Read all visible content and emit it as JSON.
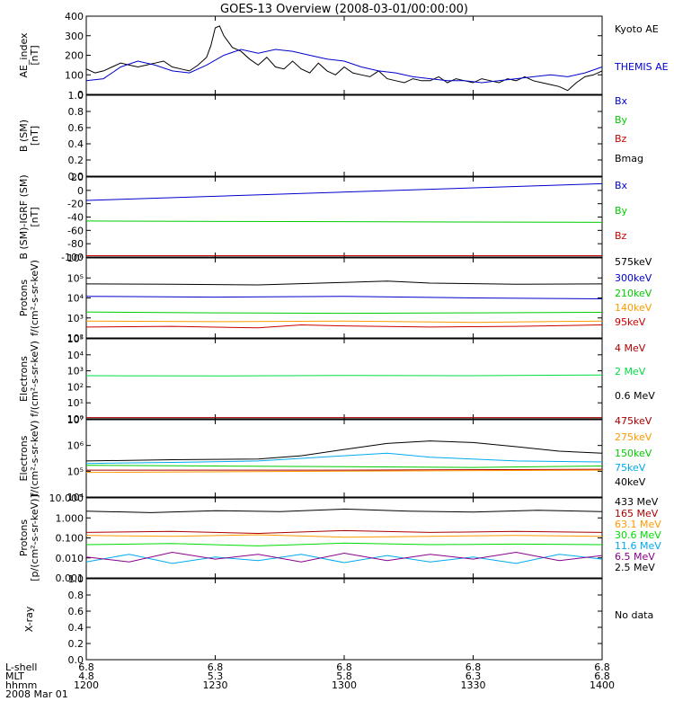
{
  "title": "GOES-13 Overview (2008-03-01/00:00:00)",
  "colors": {
    "black": "#000000",
    "blue": "#0000cc",
    "green": "#00cc00",
    "red": "#cc0000",
    "dark_red": "#aa0000",
    "orange": "#ff9900",
    "cyan": "#00aaee",
    "purple": "#880088",
    "bright_green": "#00dd44",
    "gold": "#ddcc00"
  },
  "x_axis": {
    "rows": [
      {
        "label": "L-shell",
        "values": [
          "6.8",
          "6.8",
          "6.8",
          "6.8",
          "6.8"
        ]
      },
      {
        "label": "MLT",
        "values": [
          "4.8",
          "5.3",
          "5.8",
          "6.3",
          "6.8"
        ]
      },
      {
        "label": "hhmm",
        "values": [
          "1200",
          "1230",
          "1300",
          "1330",
          "1400"
        ]
      }
    ],
    "date_label": "2008 Mar 01",
    "range": [
      "12:00",
      "14:00"
    ]
  },
  "chart_data": [
    {
      "type": "line",
      "ylabel": "AE_index\n[nT]",
      "ylim": [
        0,
        400
      ],
      "yticks": [
        "0",
        "100",
        "200",
        "300",
        "400"
      ],
      "series": [
        {
          "name": "Kyoto AE",
          "color": "#000000",
          "x": [
            0,
            2,
            4,
            6,
            8,
            10,
            12,
            14,
            16,
            18,
            20,
            22,
            24,
            26,
            28,
            29,
            30,
            31,
            32,
            34,
            36,
            38,
            40,
            42,
            44,
            46,
            48,
            50,
            52,
            54,
            56,
            58,
            60,
            62,
            64,
            66,
            68,
            70,
            72,
            74,
            76,
            78,
            80,
            82,
            84,
            86,
            88,
            90,
            92,
            94,
            96,
            98,
            100,
            102,
            104,
            106,
            108,
            110,
            112,
            114,
            116,
            118,
            120
          ],
          "y": [
            130,
            110,
            120,
            140,
            160,
            150,
            140,
            150,
            160,
            170,
            140,
            130,
            120,
            150,
            190,
            250,
            340,
            350,
            300,
            240,
            220,
            180,
            150,
            190,
            140,
            130,
            170,
            130,
            110,
            160,
            120,
            100,
            140,
            110,
            100,
            90,
            120,
            80,
            70,
            60,
            80,
            70,
            70,
            90,
            60,
            80,
            70,
            60,
            80,
            70,
            60,
            80,
            70,
            90,
            70,
            60,
            50,
            40,
            20,
            60,
            90,
            100,
            120
          ]
        },
        {
          "name": "THEMIS AE",
          "color": "#0000cc",
          "x": [
            0,
            4,
            8,
            12,
            16,
            20,
            24,
            28,
            32,
            36,
            40,
            44,
            48,
            52,
            56,
            60,
            64,
            68,
            72,
            76,
            80,
            84,
            88,
            92,
            96,
            100,
            104,
            108,
            112,
            116,
            120
          ],
          "y": [
            70,
            80,
            140,
            170,
            150,
            120,
            110,
            150,
            200,
            230,
            210,
            230,
            220,
            200,
            180,
            170,
            140,
            120,
            110,
            90,
            80,
            70,
            70,
            60,
            70,
            80,
            90,
            100,
            90,
            110,
            140
          ]
        }
      ]
    },
    {
      "type": "line",
      "ylabel": "B (SM)\n[nT]",
      "ylim": [
        0,
        1
      ],
      "yticks": [
        "0.0",
        "0.2",
        "0.4",
        "0.6",
        "0.8",
        "1.0"
      ],
      "series": [
        {
          "name": "Bx",
          "color": "#0000cc",
          "x": [],
          "y": []
        },
        {
          "name": "By",
          "color": "#00cc00",
          "x": [],
          "y": []
        },
        {
          "name": "Bz",
          "color": "#cc0000",
          "x": [],
          "y": []
        },
        {
          "name": "Bmag",
          "color": "#000000",
          "x": [],
          "y": []
        }
      ]
    },
    {
      "type": "line",
      "ylabel": "B (SM)-IGRF (SM)\n[nT]",
      "ylim": [
        -100,
        20
      ],
      "yticks": [
        "-100",
        "-80",
        "-60",
        "-40",
        "-20",
        "0",
        "20"
      ],
      "series": [
        {
          "name": "Bx",
          "color": "#0000cc",
          "x": [
            0,
            120
          ],
          "y": [
            -15,
            10
          ]
        },
        {
          "name": "By",
          "color": "#00cc00",
          "x": [
            0,
            120
          ],
          "y": [
            -46,
            -48
          ]
        },
        {
          "name": "Bz",
          "color": "#cc0000",
          "x": [
            0,
            120
          ],
          "y": [
            -98,
            -98
          ]
        }
      ]
    },
    {
      "type": "line",
      "log": true,
      "ylabel": "Protons\nf/(cm²-s-sr-keV)",
      "ylim": [
        100,
        1000000
      ],
      "yticks": [
        "10²",
        "10³",
        "10⁴",
        "10⁵",
        "10⁶"
      ],
      "series": [
        {
          "name": "575keV",
          "color": "#000000",
          "x": [
            0,
            20,
            40,
            60,
            70,
            80,
            100,
            120
          ],
          "y": [
            50000,
            48000,
            45000,
            60000,
            70000,
            55000,
            48000,
            50000
          ]
        },
        {
          "name": "300keV",
          "color": "#0000cc",
          "x": [
            0,
            30,
            60,
            90,
            120
          ],
          "y": [
            12000,
            11000,
            12000,
            10000,
            9000
          ]
        },
        {
          "name": "210keV",
          "color": "#00cc00",
          "x": [
            0,
            30,
            60,
            90,
            120
          ],
          "y": [
            2000,
            1800,
            1700,
            1800,
            1900
          ]
        },
        {
          "name": "140keV",
          "color": "#ff9900",
          "x": [
            0,
            30,
            60,
            90,
            120
          ],
          "y": [
            700,
            650,
            700,
            600,
            700
          ]
        },
        {
          "name": "95keV",
          "color": "#cc0000",
          "x": [
            0,
            20,
            40,
            50,
            60,
            80,
            100,
            120
          ],
          "y": [
            350,
            380,
            320,
            450,
            400,
            350,
            380,
            450
          ]
        }
      ]
    },
    {
      "type": "line",
      "log": true,
      "ylabel": "Electrons\nf/(cm²-s-sr-keV)",
      "ylim": [
        1,
        100000
      ],
      "yticks": [
        "10⁰",
        "10¹",
        "10²",
        "10³",
        "10⁴",
        "10⁵"
      ],
      "series": [
        {
          "name": "4 MeV",
          "color": "#aa0000",
          "x": [
            0,
            120
          ],
          "y": [
            1.2,
            1.2
          ]
        },
        {
          "name": "2 MeV",
          "color": "#00dd44",
          "x": [
            0,
            30,
            60,
            90,
            120
          ],
          "y": [
            500,
            480,
            520,
            500,
            550
          ]
        },
        {
          "name": "0.6 MeV",
          "color": "#000000",
          "x": [],
          "y": []
        }
      ]
    },
    {
      "type": "line",
      "log": true,
      "ylabel": "Electrons\nf/(cm²-s-sr-keV)",
      "ylim": [
        10000,
        10000000
      ],
      "yticks": [
        "10⁴",
        "10⁵",
        "10⁶",
        "10⁷"
      ],
      "series": [
        {
          "name": "475keV",
          "color": "#aa0000",
          "x": [
            0,
            60,
            120
          ],
          "y": [
            110000,
            110000,
            120000
          ]
        },
        {
          "name": "275keV",
          "color": "#ff9900",
          "x": [
            0,
            60,
            120
          ],
          "y": [
            90000,
            100000,
            110000
          ]
        },
        {
          "name": "150keV",
          "color": "#00cc00",
          "x": [
            0,
            30,
            60,
            90,
            120
          ],
          "y": [
            170000,
            160000,
            150000,
            140000,
            160000
          ]
        },
        {
          "name": "75keV",
          "color": "#00aaee",
          "x": [
            0,
            20,
            40,
            60,
            70,
            80,
            100,
            120
          ],
          "y": [
            200000,
            220000,
            250000,
            400000,
            500000,
            350000,
            250000,
            230000
          ]
        },
        {
          "name": "40keV",
          "color": "#000000",
          "x": [
            0,
            20,
            40,
            50,
            60,
            70,
            80,
            90,
            100,
            110,
            120
          ],
          "y": [
            250000,
            280000,
            300000,
            400000,
            700000,
            1200000,
            1500000,
            1300000,
            900000,
            600000,
            500000
          ]
        }
      ]
    },
    {
      "type": "line",
      "log": true,
      "ylabel": "Protons\n[p/(cm²-s-sr-keV)]",
      "ylim": [
        0.001,
        100
      ],
      "yticks": [
        "0.001",
        "0.010",
        "0.100",
        "1.000",
        "10.000"
      ],
      "series": [
        {
          "name": "433 MeV",
          "color": "#000000",
          "x": [
            0,
            15,
            30,
            45,
            60,
            75,
            90,
            105,
            120
          ],
          "y": [
            15,
            12,
            16,
            14,
            20,
            15,
            13,
            17,
            14
          ]
        },
        {
          "name": "165 MeV",
          "color": "#aa0000",
          "x": [
            0,
            20,
            40,
            60,
            80,
            100,
            120
          ],
          "y": [
            0.7,
            0.8,
            0.6,
            0.9,
            0.7,
            0.8,
            0.7
          ]
        },
        {
          "name": "63.1 MeV",
          "color": "#ff9900",
          "x": [
            0,
            20,
            40,
            60,
            80,
            100,
            120
          ],
          "y": [
            0.45,
            0.4,
            0.5,
            0.35,
            0.4,
            0.45,
            0.4
          ]
        },
        {
          "name": "30.6 MeV",
          "color": "#00dd00",
          "x": [
            0,
            20,
            40,
            60,
            80,
            100,
            120
          ],
          "y": [
            0.12,
            0.14,
            0.1,
            0.15,
            0.12,
            0.13,
            0.12
          ]
        },
        {
          "name": "11.6 MeV",
          "color": "#00aaee",
          "x": [
            0,
            10,
            20,
            30,
            40,
            50,
            60,
            70,
            80,
            90,
            100,
            110,
            120
          ],
          "y": [
            0.01,
            0.03,
            0.008,
            0.02,
            0.012,
            0.03,
            0.009,
            0.025,
            0.01,
            0.02,
            0.008,
            0.03,
            0.015
          ]
        },
        {
          "name": "6.5 MeV",
          "color": "#880088",
          "x": [
            0,
            10,
            20,
            30,
            40,
            50,
            60,
            70,
            80,
            90,
            100,
            110,
            120
          ],
          "y": [
            0.02,
            0.01,
            0.04,
            0.015,
            0.03,
            0.01,
            0.035,
            0.012,
            0.03,
            0.015,
            0.04,
            0.012,
            0.025
          ]
        },
        {
          "name": "2.5 MeV",
          "color": "#000000",
          "x": [],
          "y": []
        }
      ]
    },
    {
      "type": "line",
      "ylabel": "X-ray",
      "ylim": [
        0,
        1
      ],
      "yticks": [
        "0.0",
        "0.2",
        "0.4",
        "0.6",
        "0.8",
        "1.0"
      ],
      "series": [],
      "note": "No data"
    }
  ]
}
